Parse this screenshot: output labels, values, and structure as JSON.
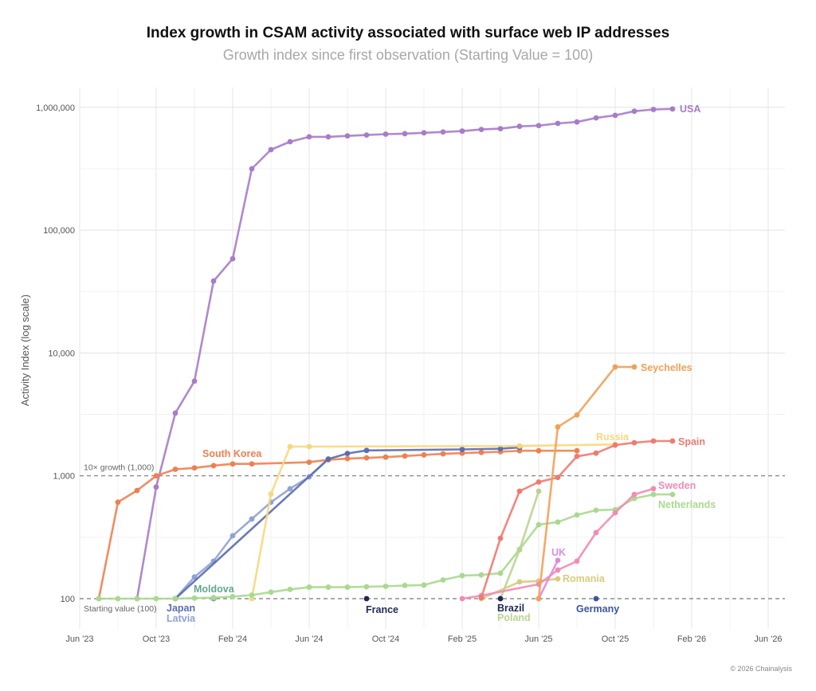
{
  "chart_data": {
    "type": "line",
    "title": "Index growth in CSAM activity associated with surface web IP addresses",
    "subtitle": "Growth index since first observation (Starting Value = 100)",
    "ylabel": "Activity Index (log scale)",
    "xlabel": "",
    "yscale": "log",
    "ylim": [
      60,
      1500000
    ],
    "xlim": [
      "2023-06",
      "2026-06"
    ],
    "grid": true,
    "legend": "direct labels at line ends",
    "x_ticks": [
      "Jun '23",
      "Oct '23",
      "Feb '24",
      "Jun '24",
      "Oct '24",
      "Feb '25",
      "Jun '25",
      "Oct '25",
      "Feb '26",
      "Jun '26"
    ],
    "x_tick_dates": [
      "2023-06",
      "2023-10",
      "2024-02",
      "2024-06",
      "2024-10",
      "2025-02",
      "2025-06",
      "2025-10",
      "2026-02",
      "2026-06"
    ],
    "y_ticks": [
      "100",
      "1,000",
      "10,000",
      "100,000",
      "1,000,000"
    ],
    "y_tick_values": [
      100,
      1000,
      10000,
      100000,
      1000000
    ],
    "reference_lines": [
      {
        "value": 1000,
        "label": "10× growth (1,000)"
      },
      {
        "value": 100,
        "label": "Starting value (100)"
      }
    ],
    "credit": "© 2026 Chainalysis",
    "series": [
      {
        "name": "USA",
        "color": "#a77cc8",
        "points": [
          [
            "2023-09",
            100
          ],
          [
            "2023-10",
            810
          ],
          [
            "2023-11",
            3240
          ],
          [
            "2023-12",
            5900
          ],
          [
            "2024-01",
            38500
          ],
          [
            "2024-02",
            58500
          ],
          [
            "2024-03",
            316000
          ],
          [
            "2024-04",
            452000
          ],
          [
            "2024-05",
            525000
          ],
          [
            "2024-06",
            575000
          ],
          [
            "2024-07",
            575000
          ],
          [
            "2024-08",
            585000
          ],
          [
            "2024-09",
            595000
          ],
          [
            "2024-10",
            605000
          ],
          [
            "2024-11",
            610000
          ],
          [
            "2024-12",
            620000
          ],
          [
            "2025-01",
            630000
          ],
          [
            "2025-02",
            640000
          ],
          [
            "2025-03",
            660000
          ],
          [
            "2025-04",
            670000
          ],
          [
            "2025-05",
            700000
          ],
          [
            "2025-06",
            710000
          ],
          [
            "2025-07",
            740000
          ],
          [
            "2025-08",
            760000
          ],
          [
            "2025-09",
            820000
          ],
          [
            "2025-10",
            860000
          ],
          [
            "2025-11",
            930000
          ],
          [
            "2025-12",
            960000
          ],
          [
            "2026-01",
            970000
          ]
        ]
      },
      {
        "name": "South Korea",
        "color": "#f07f50",
        "points": [
          [
            "2023-07",
            100
          ],
          [
            "2023-08",
            610
          ],
          [
            "2023-09",
            760
          ],
          [
            "2023-10",
            1000
          ],
          [
            "2023-11",
            1130
          ],
          [
            "2023-12",
            1160
          ],
          [
            "2024-01",
            1210
          ],
          [
            "2024-02",
            1250
          ],
          [
            "2024-03",
            1250
          ],
          [
            "2024-06",
            1290
          ],
          [
            "2024-07",
            1350
          ],
          [
            "2024-08",
            1380
          ],
          [
            "2024-09",
            1400
          ],
          [
            "2024-10",
            1420
          ],
          [
            "2024-11",
            1450
          ],
          [
            "2024-12",
            1480
          ],
          [
            "2025-01",
            1510
          ],
          [
            "2025-02",
            1530
          ],
          [
            "2025-03",
            1550
          ],
          [
            "2025-04",
            1570
          ],
          [
            "2025-05",
            1600
          ],
          [
            "2025-06",
            1600
          ],
          [
            "2025-08",
            1600
          ]
        ]
      },
      {
        "name": "Latvia",
        "color": "#8ea2d4",
        "points": [
          [
            "2023-11",
            100
          ],
          [
            "2023-12",
            150
          ],
          [
            "2024-01",
            202
          ],
          [
            "2024-02",
            325
          ],
          [
            "2024-03",
            445
          ],
          [
            "2024-04",
            610
          ],
          [
            "2024-05",
            785
          ],
          [
            "2024-06",
            980
          ],
          [
            "2024-07",
            1370
          ]
        ]
      },
      {
        "name": "Japan",
        "color": "#5b6db0",
        "points": [
          [
            "2023-11",
            100
          ],
          [
            "2024-07",
            1370
          ],
          [
            "2024-08",
            1520
          ],
          [
            "2024-09",
            1610
          ],
          [
            "2025-02",
            1640
          ],
          [
            "2025-04",
            1660
          ],
          [
            "2025-05",
            1700
          ]
        ]
      },
      {
        "name": "Russia",
        "color": "#f8d77c",
        "points": [
          [
            "2024-03",
            100
          ],
          [
            "2024-04",
            710
          ],
          [
            "2024-05",
            1730
          ],
          [
            "2024-06",
            1730
          ],
          [
            "2025-05",
            1750
          ],
          [
            "2025-10",
            1800
          ]
        ]
      },
      {
        "name": "Moldova",
        "color": "#5fa88f",
        "points": [
          [
            "2024-01",
            100
          ]
        ]
      },
      {
        "name": "Netherlands",
        "color": "#a9d98f",
        "points": [
          [
            "2023-07",
            100
          ],
          [
            "2023-08",
            100
          ],
          [
            "2023-09",
            100
          ],
          [
            "2023-10",
            100
          ],
          [
            "2023-11",
            100
          ],
          [
            "2023-12",
            101
          ],
          [
            "2024-01",
            102
          ],
          [
            "2024-02",
            104
          ],
          [
            "2024-03",
            107
          ],
          [
            "2024-04",
            113
          ],
          [
            "2024-05",
            119
          ],
          [
            "2024-06",
            124
          ],
          [
            "2024-07",
            124
          ],
          [
            "2024-08",
            124
          ],
          [
            "2024-09",
            125
          ],
          [
            "2024-10",
            126
          ],
          [
            "2024-11",
            128
          ],
          [
            "2024-12",
            129
          ],
          [
            "2025-01",
            142
          ],
          [
            "2025-02",
            154
          ],
          [
            "2025-03",
            156
          ],
          [
            "2025-04",
            161
          ],
          [
            "2025-05",
            252
          ],
          [
            "2025-06",
            400
          ],
          [
            "2025-07",
            420
          ],
          [
            "2025-08",
            480
          ],
          [
            "2025-09",
            525
          ],
          [
            "2025-10",
            530
          ],
          [
            "2025-11",
            655
          ],
          [
            "2025-12",
            705
          ],
          [
            "2026-01",
            705
          ]
        ]
      },
      {
        "name": "Poland",
        "color": "#b9d48e",
        "points": [
          [
            "2025-04",
            100
          ],
          [
            "2025-05",
            250
          ],
          [
            "2025-06",
            750
          ]
        ]
      },
      {
        "name": "Brazil",
        "color": "#1e2a55",
        "points": [
          [
            "2025-04",
            100
          ]
        ]
      },
      {
        "name": "France",
        "color": "#1e2a55",
        "points": [
          [
            "2024-09",
            100
          ]
        ]
      },
      {
        "name": "Germany",
        "color": "#3c55a0",
        "points": [
          [
            "2025-09",
            100
          ]
        ]
      },
      {
        "name": "Romania",
        "color": "#d8cb7d",
        "points": [
          [
            "2025-03",
            100
          ],
          [
            "2025-05",
            137
          ],
          [
            "2025-06",
            139
          ],
          [
            "2025-07",
            145
          ]
        ]
      },
      {
        "name": "UK",
        "color": "#d98ce0",
        "points": [
          [
            "2025-06",
            100
          ],
          [
            "2025-07",
            205
          ]
        ]
      },
      {
        "name": "Sweden",
        "color": "#f28bb3",
        "points": [
          [
            "2025-02",
            100
          ],
          [
            "2025-03",
            106
          ],
          [
            "2025-06",
            131
          ],
          [
            "2025-07",
            171
          ],
          [
            "2025-08",
            202
          ],
          [
            "2025-09",
            345
          ],
          [
            "2025-10",
            500
          ],
          [
            "2025-11",
            705
          ],
          [
            "2025-12",
            785
          ]
        ]
      },
      {
        "name": "Spain",
        "color": "#f07a70",
        "points": [
          [
            "2025-03",
            102
          ],
          [
            "2025-04",
            310
          ],
          [
            "2025-05",
            750
          ],
          [
            "2025-06",
            890
          ],
          [
            "2025-07",
            970
          ],
          [
            "2025-08",
            1440
          ],
          [
            "2025-09",
            1530
          ],
          [
            "2025-10",
            1780
          ],
          [
            "2025-11",
            1860
          ],
          [
            "2025-12",
            1920
          ],
          [
            "2026-01",
            1920
          ]
        ]
      },
      {
        "name": "Seychelles",
        "color": "#f3a055",
        "points": [
          [
            "2025-06",
            100
          ],
          [
            "2025-07",
            2500
          ],
          [
            "2025-08",
            3130
          ],
          [
            "2025-10",
            7700
          ],
          [
            "2025-11",
            7700
          ]
        ]
      }
    ]
  }
}
